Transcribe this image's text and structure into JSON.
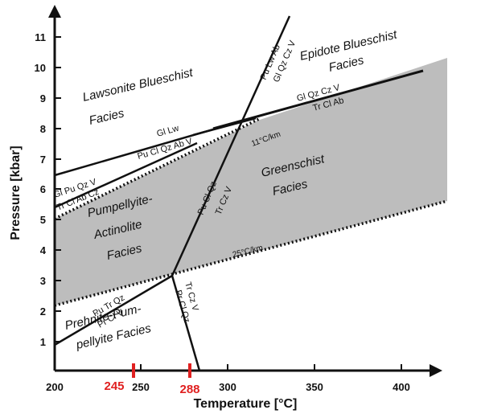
{
  "axes": {
    "x_label": "Temperature [°C]",
    "y_label": "Pressure [kbar]",
    "x_ticks": [
      "200",
      "250",
      "300",
      "350",
      "400"
    ],
    "y_ticks": [
      "1",
      "2",
      "3",
      "4",
      "5",
      "6",
      "7",
      "8",
      "9",
      "10",
      "11"
    ]
  },
  "markers": {
    "color": "#e02020",
    "values": [
      "245",
      "288"
    ]
  },
  "facies": {
    "lawsonite_1": "Lawsonite Blueschist",
    "lawsonite_2": "Facies",
    "epidote_1": "Epidote Blueschist",
    "epidote_2": "Facies",
    "pumpellyite_1": "Pumpellyite-",
    "pumpellyite_2": "Actinolite",
    "pumpellyite_3": "Facies",
    "greenschist_1": "Greenschist",
    "greenschist_2": "Facies",
    "prehnite_1": "Prehnite-Pum-",
    "prehnite_2": "pellyite Facies"
  },
  "reactions": {
    "gl_lw": "Gl Lw",
    "pu_cl_qz_ab_v": "Pu Cl Qz Ab V",
    "gl_pu_qz_v": "Gl Pu Qz V",
    "tr_cl_ab_cz": "Tr Cl Ab Cz",
    "gl_qz_cz_v": "Gl Qz Cz V",
    "tr_cl_ab": "Tr Cl Ab",
    "pu_lw_ab": "Pu Lw Ab",
    "gl_qz_cz_v_vert": "Gl Qz Cz V",
    "pu_cl_qz": "Pu Cl Qz",
    "tr_cz_v": "Tr Cz V",
    "pu_tr_qz": "Pu Tr Qz",
    "pr_cl_v": "Pr Cl V",
    "tr_cz_v_low": "Tr Cz V",
    "pr_cl_qz": "Pr Cl Qz"
  },
  "gradients": {
    "g11": "11°C/km",
    "g25": "25°C/km"
  },
  "colors": {
    "greenschist_field": "#bdbdbd",
    "lines": "#111111"
  }
}
